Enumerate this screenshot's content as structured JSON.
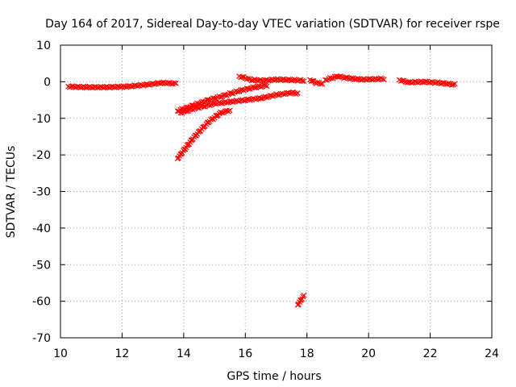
{
  "chart_data": {
    "type": "scatter",
    "title": "Day 164 of 2017, Sidereal Day-to-day VTEC variation (SDTVAR) for receiver rspe",
    "xlabel": "GPS time / hours",
    "ylabel": "SDTVAR / TECUs",
    "xlim": [
      10,
      24
    ],
    "ylim": [
      -70,
      10
    ],
    "xticks": [
      10,
      12,
      14,
      16,
      18,
      20,
      22,
      24
    ],
    "yticks": [
      10,
      0,
      -10,
      -20,
      -30,
      -40,
      -50,
      -60,
      -70
    ],
    "grid": true,
    "series": [
      {
        "color": "#ff0000",
        "segments": [
          [
            [
              10.25,
              -1.3
            ],
            [
              10.8,
              -1.5
            ],
            [
              11.5,
              -1.5
            ],
            [
              12.2,
              -1.3
            ],
            [
              12.8,
              -0.8
            ],
            [
              13.3,
              -0.3
            ],
            [
              13.75,
              -0.5
            ]
          ],
          [
            [
              13.8,
              -21.0
            ],
            [
              14.3,
              -15.5
            ],
            [
              14.8,
              -11.0
            ],
            [
              15.2,
              -8.5
            ],
            [
              15.5,
              -7.8
            ]
          ],
          [
            [
              13.8,
              -8.0
            ],
            [
              14.3,
              -6.5
            ],
            [
              14.8,
              -5.0
            ],
            [
              15.3,
              -3.8
            ],
            [
              15.8,
              -2.5
            ],
            [
              16.3,
              -1.5
            ],
            [
              16.7,
              -1.0
            ]
          ],
          [
            [
              13.9,
              -8.5
            ],
            [
              14.4,
              -7.2
            ],
            [
              15.0,
              -6.0
            ],
            [
              15.5,
              -5.5
            ],
            [
              16.0,
              -5.0
            ],
            [
              16.5,
              -4.5
            ],
            [
              17.0,
              -3.6
            ],
            [
              17.5,
              -3.0
            ],
            [
              17.7,
              -3.2
            ]
          ],
          [
            [
              15.8,
              1.5
            ],
            [
              16.2,
              0.5
            ],
            [
              16.6,
              0.3
            ],
            [
              17.0,
              0.6
            ],
            [
              17.5,
              0.5
            ],
            [
              17.9,
              0.3
            ]
          ],
          [
            [
              17.7,
              -61.0
            ],
            [
              17.9,
              -58.5
            ]
          ],
          [
            [
              18.1,
              0.5
            ],
            [
              18.3,
              -0.3
            ],
            [
              18.5,
              -0.5
            ]
          ],
          [
            [
              18.6,
              0.5
            ],
            [
              19.0,
              1.5
            ],
            [
              19.3,
              1.0
            ],
            [
              19.8,
              0.6
            ],
            [
              20.5,
              0.8
            ]
          ],
          [
            [
              21.0,
              0.5
            ],
            [
              21.3,
              -0.2
            ],
            [
              21.8,
              0.0
            ],
            [
              22.3,
              -0.3
            ],
            [
              22.8,
              -0.8
            ]
          ]
        ]
      }
    ]
  }
}
